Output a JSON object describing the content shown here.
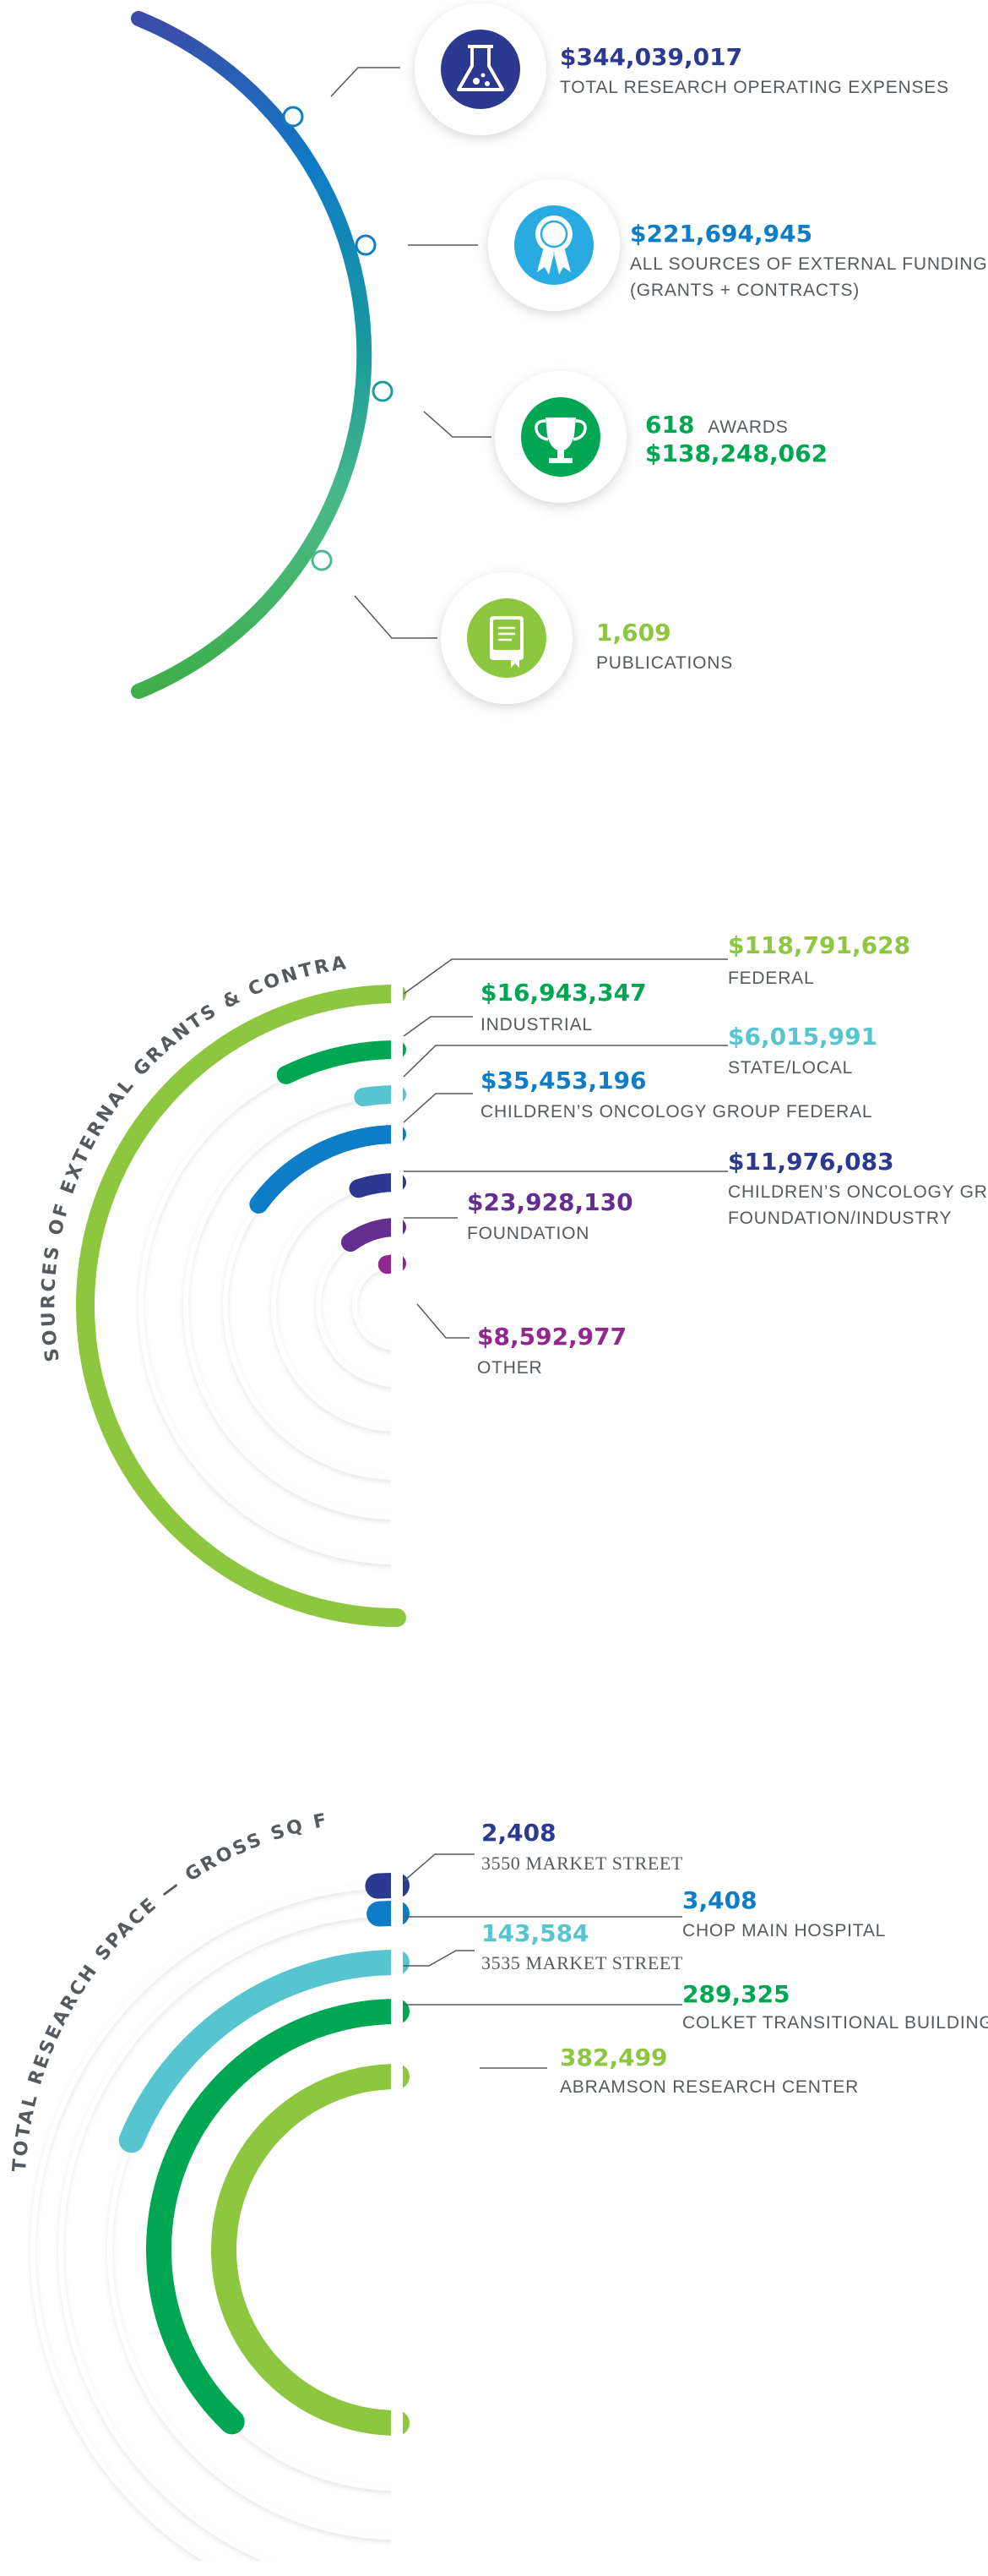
{
  "colors": {
    "navy": "#2b3990",
    "blue": "#0e7cc7",
    "sky": "#29abe2",
    "teal": "#1b9b9b",
    "green": "#00a651",
    "lime": "#8dc63f",
    "cyan": "#56c5d0",
    "purple": "#662d91",
    "magenta": "#92278f",
    "gray_text": "#555a5e"
  },
  "stats": {
    "items": [
      {
        "icon": "flask-icon",
        "value": "$344,039,017",
        "label": "TOTAL RESEARCH OPERATING EXPENSES",
        "label2": ""
      },
      {
        "icon": "ribbon-award-icon",
        "value": "$221,694,945",
        "label": "ALL SOURCES OF EXTERNAL FUNDING",
        "label2": "(GRANTS + CONTRACTS)"
      },
      {
        "icon": "trophy-icon",
        "value": "618",
        "value_suffix": "AWARDS",
        "value2": "$138,248,062"
      },
      {
        "icon": "book-icon",
        "value": "1,609",
        "label": "PUBLICATIONS"
      }
    ]
  },
  "grants": {
    "title": "SOURCES OF EXTERNAL GRANTS & CONTRACTS.",
    "chart_data": {
      "type": "radial-bar",
      "title": "SOURCES OF EXTERNAL GRANTS & CONTRACTS.",
      "series": [
        {
          "name": "FEDERAL",
          "value": 118791628,
          "display": "$118,791,628",
          "color": "#8dc63f"
        },
        {
          "name": "INDUSTRIAL",
          "value": 16943347,
          "display": "$16,943,347",
          "color": "#00a651"
        },
        {
          "name": "STATE/LOCAL",
          "value": 6015991,
          "display": "$6,015,991",
          "color": "#56c5d0"
        },
        {
          "name": "CHILDREN’S ONCOLOGY GROUP FEDERAL",
          "value": 35453196,
          "display": "$35,453,196",
          "color": "#0e7cc7"
        },
        {
          "name": "CHILDREN’S ONCOLOGY GROUP FOUNDATION/INDUSTRY",
          "value": 11976083,
          "display": "$11,976,083",
          "color": "#2b3990"
        },
        {
          "name": "FOUNDATION",
          "value": 23928130,
          "display": "$23,928,130",
          "color": "#662d91"
        },
        {
          "name": "OTHER",
          "value": 8592977,
          "display": "$8,592,977",
          "color": "#92278f"
        }
      ]
    },
    "labels": [
      {
        "value": "$118,791,628",
        "line1": "FEDERAL",
        "line2": ""
      },
      {
        "value": "$16,943,347",
        "line1": "INDUSTRIAL",
        "line2": ""
      },
      {
        "value": "$6,015,991",
        "line1": "STATE/LOCAL",
        "line2": ""
      },
      {
        "value": "$35,453,196",
        "line1": "CHILDREN’S ONCOLOGY GROUP FEDERAL",
        "line2": ""
      },
      {
        "value": "$11,976,083",
        "line1": "CHILDREN’S ONCOLOGY GROUP",
        "line2": "FOUNDATION/INDUSTRY"
      },
      {
        "value": "$23,928,130",
        "line1": "FOUNDATION",
        "line2": ""
      },
      {
        "value": "$8,592,977",
        "line1": "OTHER",
        "line2": ""
      }
    ]
  },
  "space": {
    "title": "TOTAL RESEARCH SPACE — GROSS SQ FT.",
    "chart_data": {
      "type": "radial-bar",
      "title": "TOTAL RESEARCH SPACE — GROSS SQ FT.",
      "series": [
        {
          "name": "3550 MARKET STREET",
          "value": 2408,
          "display": "2,408",
          "color": "#2b3990"
        },
        {
          "name": "CHOP MAIN HOSPITAL",
          "value": 3408,
          "display": "3,408",
          "color": "#0e7cc7"
        },
        {
          "name": "3535 MARKET STREET",
          "value": 143584,
          "display": "143,584",
          "color": "#56c5d0"
        },
        {
          "name": "COLKET TRANSITIONAL BUILDING",
          "value": 289325,
          "display": "289,325",
          "color": "#00a651"
        },
        {
          "name": "ABRAMSON RESEARCH CENTER",
          "value": 382499,
          "display": "382,499",
          "color": "#8dc63f"
        }
      ]
    },
    "labels": [
      {
        "value": "2,408",
        "line1": "3550 MARKET STREET"
      },
      {
        "value": "3,408",
        "line1": "CHOP MAIN HOSPITAL"
      },
      {
        "value": "143,584",
        "line1": "3535 MARKET STREET"
      },
      {
        "value": "289,325",
        "line1": "COLKET TRANSITIONAL BUILDING"
      },
      {
        "value": "382,499",
        "line1": "ABRAMSON RESEARCH CENTER"
      }
    ]
  }
}
